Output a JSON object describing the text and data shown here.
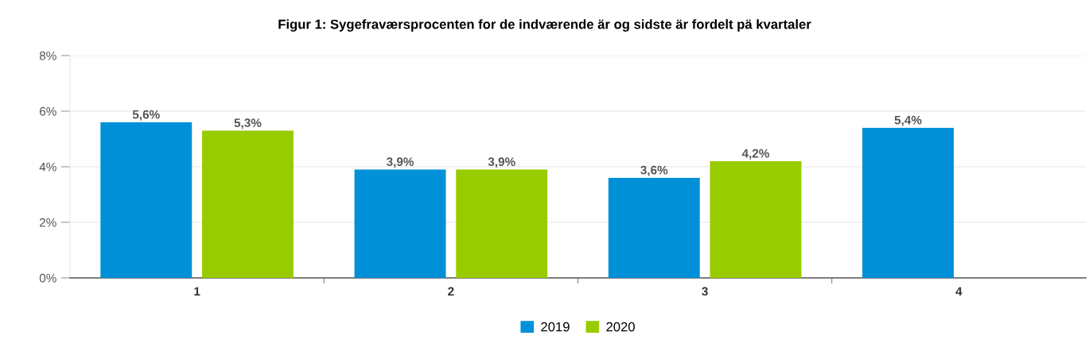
{
  "chart_data": {
    "type": "bar",
    "title": "Figur 1: Sygefraværsprocenten for de indværende är og sidste är fordelt pä kvartaler",
    "categories": [
      "1",
      "2",
      "3",
      "4"
    ],
    "series": [
      {
        "name": "2019",
        "color": "#0090d8",
        "values": [
          5.6,
          3.9,
          3.6,
          5.4
        ],
        "value_labels": [
          "5,6%",
          "3,9%",
          "3,6%",
          "5,4%"
        ]
      },
      {
        "name": "2020",
        "color": "#99cc00",
        "values": [
          5.3,
          3.9,
          4.2,
          null
        ],
        "value_labels": [
          "5,3%",
          "3,9%",
          "4,2%",
          null
        ]
      }
    ],
    "ylim": [
      0,
      8
    ],
    "yticks": [
      {
        "value": 0,
        "label": "0%"
      },
      {
        "value": 2,
        "label": "2%"
      },
      {
        "value": 4,
        "label": "4%"
      },
      {
        "value": 6,
        "label": "6%"
      },
      {
        "value": 8,
        "label": "8%"
      }
    ],
    "grid": "y",
    "legend": "bottom"
  }
}
